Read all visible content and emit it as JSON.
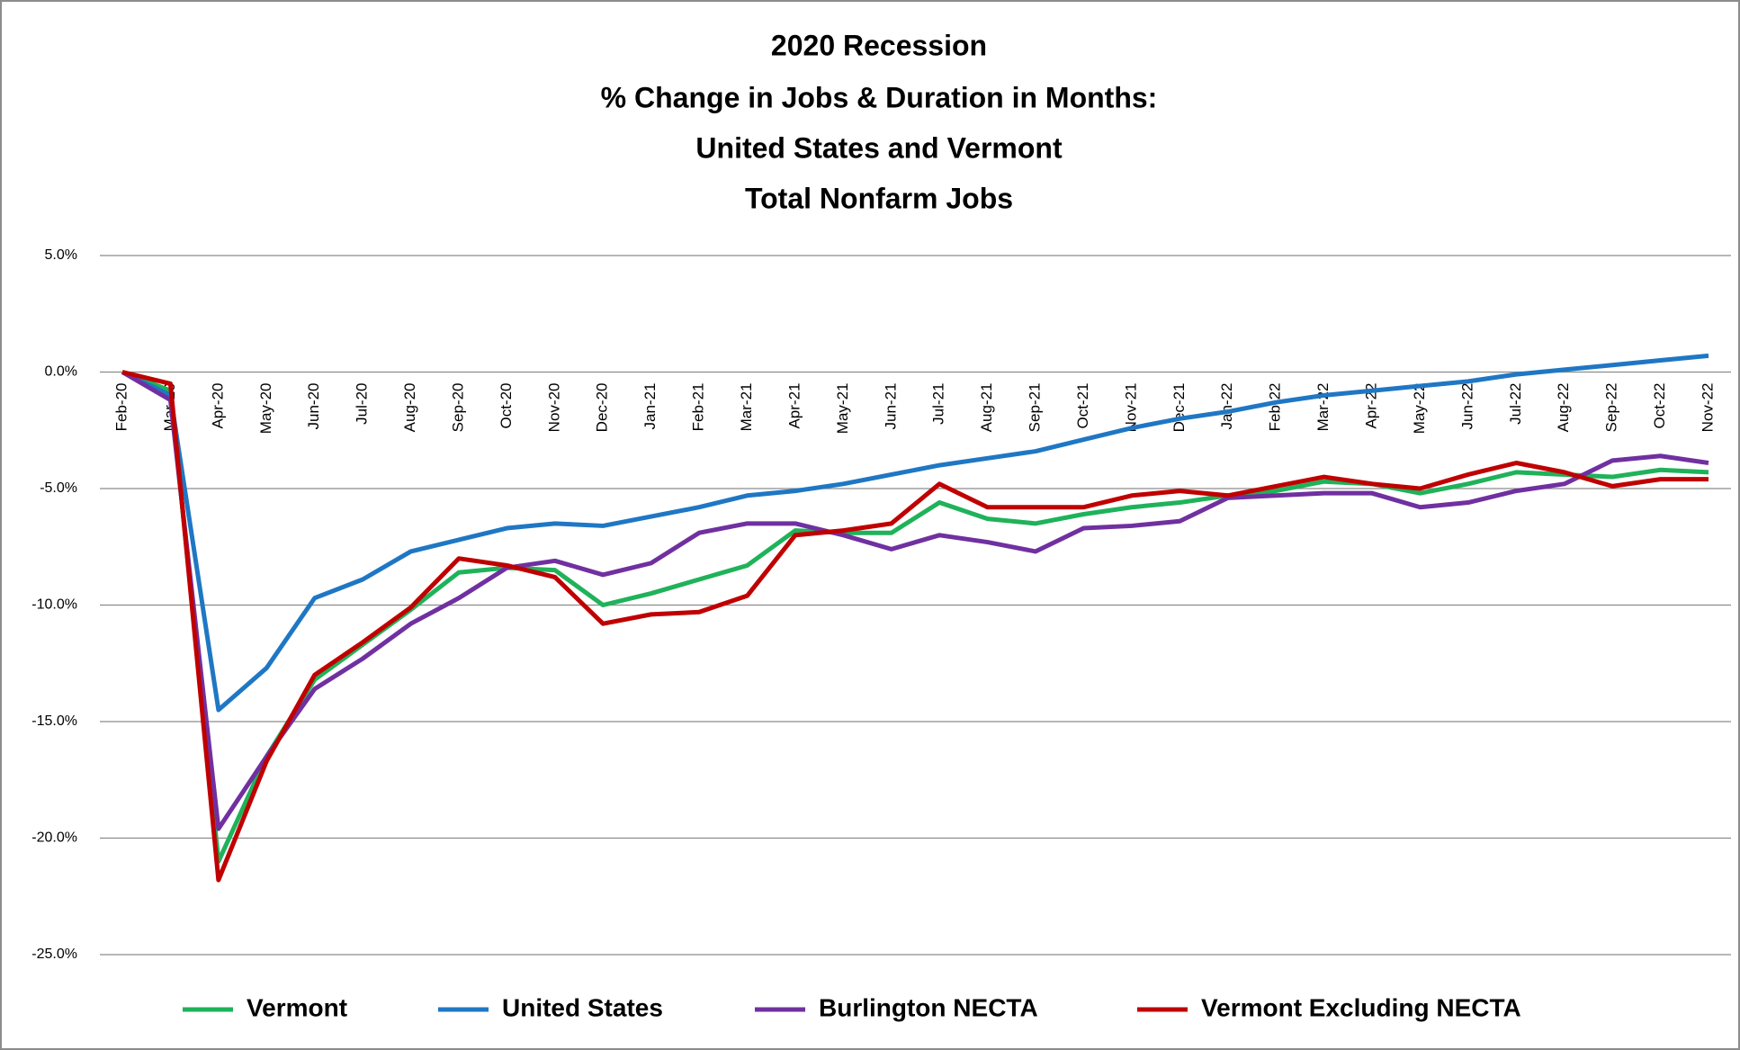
{
  "chart_data": {
    "type": "line",
    "title": [
      "2020 Recession",
      "% Change in Jobs & Duration in Months:",
      "United States and Vermont",
      "Total Nonfarm Jobs"
    ],
    "categories": [
      "Feb-20",
      "Mar-20",
      "Apr-20",
      "May-20",
      "Jun-20",
      "Jul-20",
      "Aug-20",
      "Sep-20",
      "Oct-20",
      "Nov-20",
      "Dec-20",
      "Jan-21",
      "Feb-21",
      "Mar-21",
      "Apr-21",
      "May-21",
      "Jun-21",
      "Jul-21",
      "Aug-21",
      "Sep-21",
      "Oct-21",
      "Nov-21",
      "Dec-21",
      "Jan-22",
      "Feb-22",
      "Mar-22",
      "Apr-22",
      "May-22",
      "Jun-22",
      "Jul-22",
      "Aug-22",
      "Sep-22",
      "Oct-22",
      "Nov-22"
    ],
    "series": [
      {
        "name": "Vermont",
        "color": "#1fb25a",
        "values": [
          0,
          -0.8,
          -21,
          -16.5,
          -13.2,
          -11.7,
          -10.2,
          -8.6,
          -8.4,
          -8.5,
          -10,
          -9.5,
          -8.9,
          -8.3,
          -6.8,
          -6.9,
          -6.9,
          -5.6,
          -6.3,
          -6.5,
          -6.1,
          -5.8,
          -5.6,
          -5.3,
          -5.1,
          -4.7,
          -4.8,
          -5.2,
          -4.8,
          -4.3,
          -4.4,
          -4.5,
          -4.2,
          -4.3
        ]
      },
      {
        "name": "United States",
        "color": "#1f77c4",
        "values": [
          0,
          -1,
          -14.5,
          -12.7,
          -9.7,
          -8.9,
          -7.7,
          -7.2,
          -6.7,
          -6.5,
          -6.6,
          -6.2,
          -5.8,
          -5.3,
          -5.1,
          -4.8,
          -4.4,
          -4,
          -3.7,
          -3.4,
          -2.9,
          -2.4,
          -2,
          -1.7,
          -1.3,
          -1,
          -0.8,
          -0.6,
          -0.4,
          -0.1,
          0.1,
          0.3,
          0.5,
          0.7
        ]
      },
      {
        "name": "Burlington NECTA",
        "color": "#7030a0",
        "values": [
          0,
          -1.2,
          -19.6,
          -16.5,
          -13.6,
          -12.3,
          -10.8,
          -9.7,
          -8.4,
          -8.1,
          -8.7,
          -8.2,
          -6.9,
          -6.5,
          -6.5,
          -7,
          -7.6,
          -7,
          -7.3,
          -7.7,
          -6.7,
          -6.6,
          -6.4,
          -5.4,
          -5.3,
          -5.2,
          -5.2,
          -5.8,
          -5.6,
          -5.1,
          -4.8,
          -3.8,
          -3.6,
          -3.9
        ]
      },
      {
        "name": "Vermont Excluding NECTA",
        "color": "#c00000",
        "values": [
          0,
          -0.5,
          -21.8,
          -16.7,
          -13,
          -11.6,
          -10.1,
          -8,
          -8.3,
          -8.8,
          -10.8,
          -10.4,
          -10.3,
          -9.6,
          -7,
          -6.8,
          -6.5,
          -4.8,
          -5.8,
          -5.8,
          -5.8,
          -5.3,
          -5.1,
          -5.3,
          -4.9,
          -4.5,
          -4.8,
          -5,
          -4.4,
          -3.9,
          -4.3,
          -4.9,
          -4.6,
          -4.6
        ]
      }
    ],
    "ylim": [
      -25,
      5
    ],
    "yticks": [
      {
        "value": 5,
        "label": "5.0%"
      },
      {
        "value": 0,
        "label": "0.0%"
      },
      {
        "value": -5,
        "label": "-5.0%"
      },
      {
        "value": -10,
        "label": "-10.0%"
      },
      {
        "value": -15,
        "label": "-15.0%"
      },
      {
        "value": -20,
        "label": "-20.0%"
      },
      {
        "value": -25,
        "label": "-25.0%"
      }
    ],
    "grid": true,
    "legend": "bottom"
  }
}
